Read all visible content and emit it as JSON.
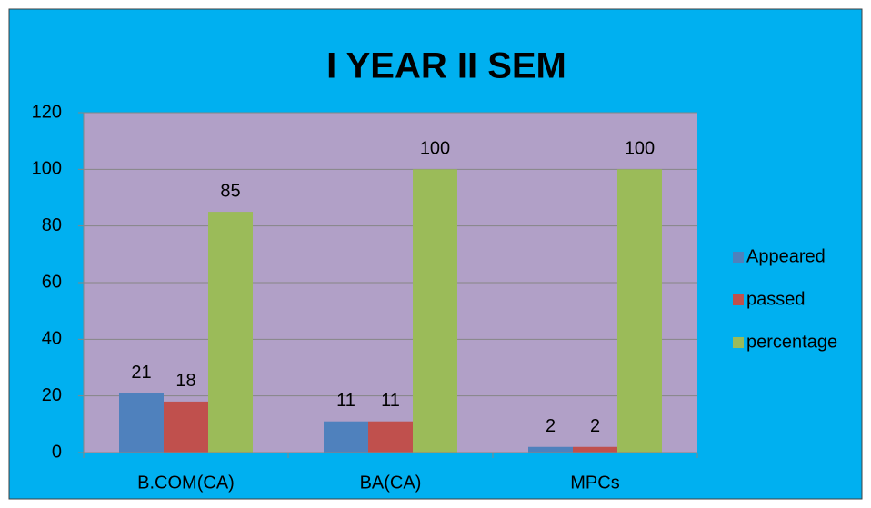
{
  "chart_data": {
    "type": "bar",
    "title": "I YEAR II SEM",
    "categories": [
      "B.COM(CA)",
      "BA(CA)",
      "MPCs"
    ],
    "series": [
      {
        "name": "Appeared",
        "color": "#4f81bd",
        "values": [
          21,
          11,
          2
        ]
      },
      {
        "name": "passed",
        "color": "#c0504d",
        "values": [
          18,
          11,
          2
        ]
      },
      {
        "name": "percentage",
        "color": "#9bbb59",
        "values": [
          85,
          100,
          100
        ]
      }
    ],
    "ylim": [
      0,
      120
    ],
    "yticks": [
      0,
      20,
      40,
      60,
      80,
      100,
      120
    ],
    "grid": true,
    "legend": "right"
  }
}
